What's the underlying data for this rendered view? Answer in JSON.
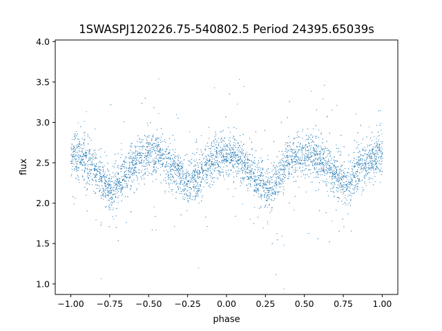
{
  "chart_data": {
    "type": "scatter",
    "title": "1SWASPJ120226.75-540802.5 Period 24395.65039s",
    "xlabel": "phase",
    "ylabel": "flux",
    "xlim": [
      -1.1,
      1.1
    ],
    "ylim": [
      0.87,
      4.02
    ],
    "x_ticks": [
      -1.0,
      -0.75,
      -0.5,
      -0.25,
      0.0,
      0.25,
      0.5,
      0.75,
      1.0
    ],
    "x_tick_labels": [
      "−1.00",
      "−0.75",
      "−0.50",
      "−0.25",
      "0.00",
      "0.25",
      "0.50",
      "0.75",
      "1.00"
    ],
    "y_ticks": [
      1.0,
      1.5,
      2.0,
      2.5,
      3.0,
      3.5,
      4.0
    ],
    "y_tick_labels": [
      "1.0",
      "1.5",
      "2.0",
      "2.5",
      "3.0",
      "3.5",
      "4.0"
    ],
    "grid": false,
    "legend": "none",
    "marker_color": "#1f77b4",
    "series": [
      {
        "x": [
          -1.0,
          -0.9,
          -0.8,
          -0.75,
          -0.7,
          -0.6,
          -0.5,
          -0.4,
          -0.3,
          -0.25,
          -0.2,
          -0.1,
          0.0,
          0.1,
          0.2,
          0.25,
          0.3,
          0.4,
          0.5,
          0.6,
          0.7,
          0.75,
          0.8,
          0.9,
          1.0
        ],
        "y": [
          2.6,
          2.52,
          2.3,
          2.18,
          2.25,
          2.5,
          2.62,
          2.55,
          2.35,
          2.25,
          2.32,
          2.5,
          2.62,
          2.5,
          2.28,
          2.18,
          2.25,
          2.52,
          2.62,
          2.55,
          2.35,
          2.25,
          2.32,
          2.5,
          2.6
        ]
      }
    ]
  }
}
